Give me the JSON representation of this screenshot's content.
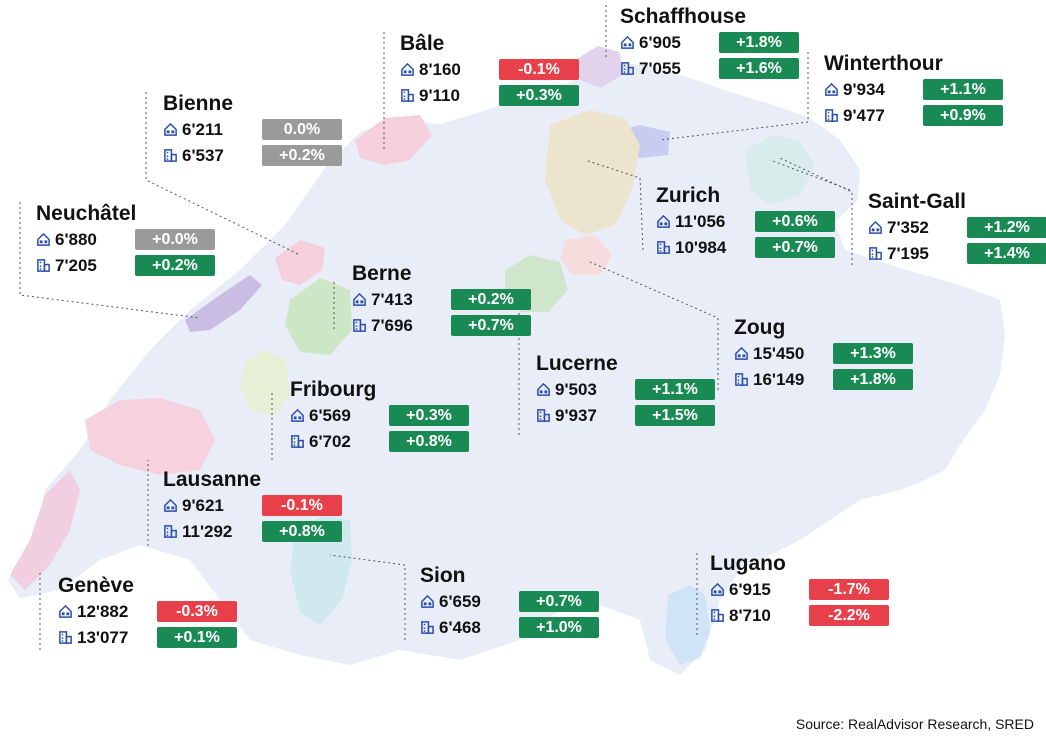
{
  "colors": {
    "positive": "#1a8a55",
    "negative": "#e8404a",
    "neutral": "#9a9a9a",
    "country": "#e9edf7",
    "icon": "#2b4fa8"
  },
  "icons": {
    "first": "house-icon",
    "second": "apartment-building-icon"
  },
  "cities": [
    {
      "name": "Bâle",
      "r1": {
        "value": "8'160",
        "change": "-0.1%",
        "status": "negative"
      },
      "r2": {
        "value": "9'110",
        "change": "+0.3%",
        "status": "positive"
      }
    },
    {
      "name": "Schaffhouse",
      "r1": {
        "value": "6'905",
        "change": "+1.8%",
        "status": "positive"
      },
      "r2": {
        "value": "7'055",
        "change": "+1.6%",
        "status": "positive"
      }
    },
    {
      "name": "Winterthour",
      "r1": {
        "value": "9'934",
        "change": "+1.1%",
        "status": "positive"
      },
      "r2": {
        "value": "9'477",
        "change": "+0.9%",
        "status": "positive"
      }
    },
    {
      "name": "Bienne",
      "r1": {
        "value": "6'211",
        "change": "0.0%",
        "status": "neutral"
      },
      "r2": {
        "value": "6'537",
        "change": "+0.2%",
        "status": "neutral"
      }
    },
    {
      "name": "Neuchâtel",
      "r1": {
        "value": "6'880",
        "change": "+0.0%",
        "status": "neutral"
      },
      "r2": {
        "value": "7'205",
        "change": "+0.2%",
        "status": "positive"
      }
    },
    {
      "name": "Zurich",
      "r1": {
        "value": "11'056",
        "change": "+0.6%",
        "status": "positive"
      },
      "r2": {
        "value": "10'984",
        "change": "+0.7%",
        "status": "positive"
      }
    },
    {
      "name": "Saint-Gall",
      "r1": {
        "value": "7'352",
        "change": "+1.2%",
        "status": "positive"
      },
      "r2": {
        "value": "7'195",
        "change": "+1.4%",
        "status": "positive"
      }
    },
    {
      "name": "Berne",
      "r1": {
        "value": "7'413",
        "change": "+0.2%",
        "status": "positive"
      },
      "r2": {
        "value": "7'696",
        "change": "+0.7%",
        "status": "positive"
      }
    },
    {
      "name": "Zoug",
      "r1": {
        "value": "15'450",
        "change": "+1.3%",
        "status": "positive"
      },
      "r2": {
        "value": "16'149",
        "change": "+1.8%",
        "status": "positive"
      }
    },
    {
      "name": "Lucerne",
      "r1": {
        "value": "9'503",
        "change": "+1.1%",
        "status": "positive"
      },
      "r2": {
        "value": "9'937",
        "change": "+1.5%",
        "status": "positive"
      }
    },
    {
      "name": "Fribourg",
      "r1": {
        "value": "6'569",
        "change": "+0.3%",
        "status": "positive"
      },
      "r2": {
        "value": "6'702",
        "change": "+0.8%",
        "status": "positive"
      }
    },
    {
      "name": "Lausanne",
      "r1": {
        "value": "9'621",
        "change": "-0.1%",
        "status": "negative"
      },
      "r2": {
        "value": "11'292",
        "change": "+0.8%",
        "status": "positive"
      }
    },
    {
      "name": "Sion",
      "r1": {
        "value": "6'659",
        "change": "+0.7%",
        "status": "positive"
      },
      "r2": {
        "value": "6'468",
        "change": "+1.0%",
        "status": "positive"
      }
    },
    {
      "name": "Lugano",
      "r1": {
        "value": "6'915",
        "change": "-1.7%",
        "status": "negative"
      },
      "r2": {
        "value": "8'710",
        "change": "-2.2%",
        "status": "negative"
      }
    },
    {
      "name": "Genève",
      "r1": {
        "value": "12'882",
        "change": "-0.3%",
        "status": "negative"
      },
      "r2": {
        "value": "13'077",
        "change": "+0.1%",
        "status": "positive"
      }
    }
  ],
  "source": "Source: RealAdvisor Research, SRED"
}
